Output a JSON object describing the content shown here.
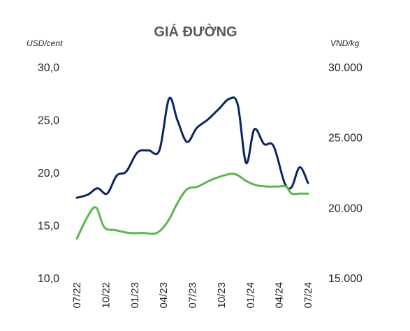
{
  "chart_data": {
    "type": "line",
    "title": "GIÁ ĐƯỜNG",
    "left_axis": {
      "unit": "USD/cent",
      "ylim": [
        10,
        30
      ],
      "ticks": [
        "30,0",
        "25,0",
        "20,0",
        "15,0",
        "10,0"
      ],
      "tick_values": [
        30,
        25,
        20,
        15,
        10
      ]
    },
    "right_axis": {
      "unit": "VND/kg",
      "ylim": [
        15000,
        30000
      ],
      "ticks": [
        "30.000",
        "25.000",
        "20.000",
        "15.000"
      ],
      "tick_values": [
        30000,
        25000,
        20000,
        15000
      ]
    },
    "x_ticks": [
      {
        "label": "07/22",
        "t": 0
      },
      {
        "label": "10/22",
        "t": 3
      },
      {
        "label": "01/23",
        "t": 6
      },
      {
        "label": "04/23",
        "t": 9
      },
      {
        "label": "07/23",
        "t": 12
      },
      {
        "label": "10/23",
        "t": 15
      },
      {
        "label": "01/24",
        "t": 18
      },
      {
        "label": "04/24",
        "t": 21
      },
      {
        "label": "07/24",
        "t": 24
      }
    ],
    "series": [
      {
        "axis": "left",
        "color": "#0b2560",
        "points": [
          [
            0,
            17.6
          ],
          [
            0.8,
            17.9
          ],
          [
            1.5,
            18.5
          ],
          [
            2.2,
            18.0
          ],
          [
            2.9,
            19.7
          ],
          [
            3.6,
            20.1
          ],
          [
            4.4,
            21.9
          ],
          [
            5.2,
            22.1
          ],
          [
            6.0,
            22.1
          ],
          [
            6.7,
            27.0
          ],
          [
            7.3,
            25.0
          ],
          [
            8.0,
            22.9
          ],
          [
            8.7,
            24.2
          ],
          [
            9.5,
            25.0
          ],
          [
            10.3,
            26.0
          ],
          [
            11.1,
            27.0
          ],
          [
            11.7,
            26.4
          ],
          [
            12.3,
            20.9
          ],
          [
            12.9,
            24.1
          ],
          [
            13.6,
            22.7
          ],
          [
            14.3,
            22.5
          ],
          [
            15.1,
            19.0
          ],
          [
            15.6,
            18.6
          ],
          [
            16.2,
            20.5
          ],
          [
            16.8,
            19.0
          ]
        ]
      },
      {
        "axis": "right",
        "color": "#5ab84b",
        "points": [
          [
            0,
            17800
          ],
          [
            0.8,
            19400
          ],
          [
            1.4,
            20000
          ],
          [
            2.0,
            18600
          ],
          [
            2.8,
            18400
          ],
          [
            3.8,
            18200
          ],
          [
            4.8,
            18200
          ],
          [
            5.8,
            18200
          ],
          [
            6.6,
            19000
          ],
          [
            7.3,
            20300
          ],
          [
            8.0,
            21300
          ],
          [
            8.8,
            21500
          ],
          [
            9.6,
            21900
          ],
          [
            10.4,
            22200
          ],
          [
            11.2,
            22400
          ],
          [
            11.7,
            22300
          ],
          [
            12.3,
            21900
          ],
          [
            13.0,
            21600
          ],
          [
            13.8,
            21500
          ],
          [
            14.6,
            21500
          ],
          [
            15.2,
            21500
          ],
          [
            15.6,
            21000
          ],
          [
            16.2,
            21000
          ],
          [
            16.8,
            21000
          ]
        ]
      }
    ]
  }
}
